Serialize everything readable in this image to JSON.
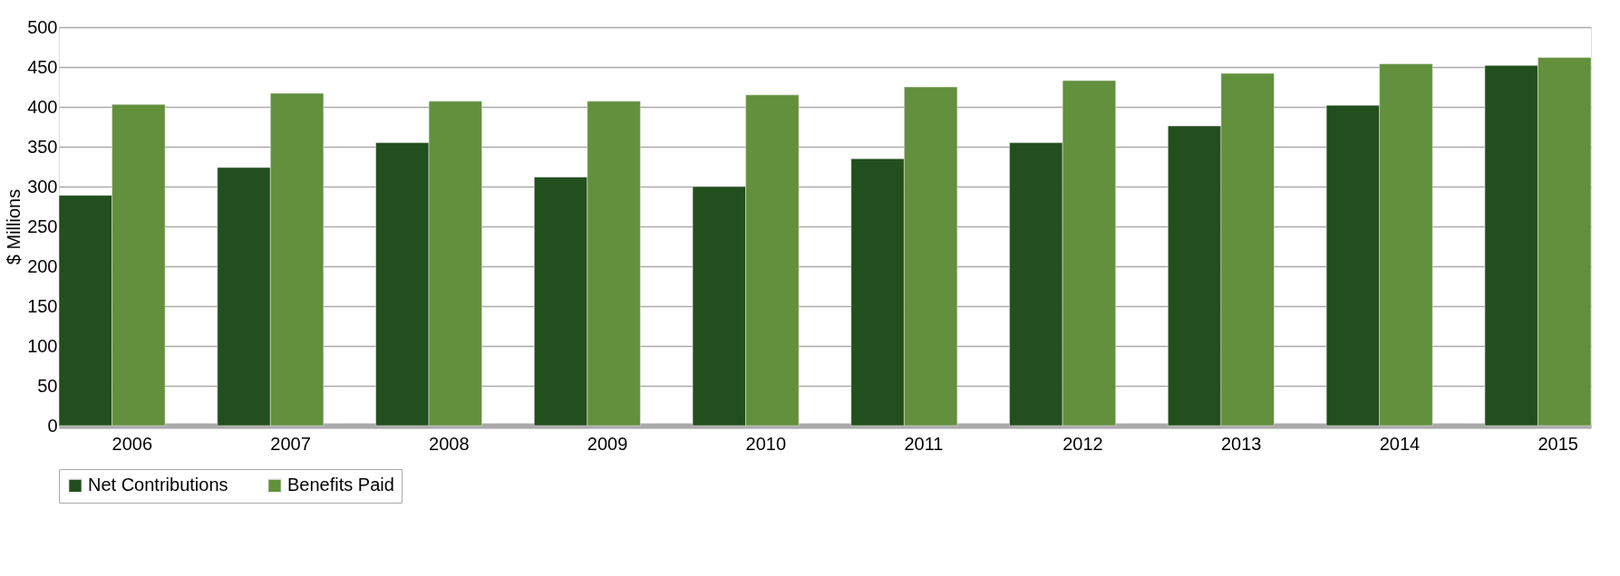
{
  "chart_data": {
    "type": "bar",
    "ylabel": "$ Millions",
    "categories": [
      "2006",
      "2007",
      "2008",
      "2009",
      "2010",
      "2011",
      "2012",
      "2013",
      "2014",
      "2015"
    ],
    "series": [
      {
        "name": "Net Contributions",
        "color": "#224f1d",
        "values": [
          289,
          324,
          355,
          312,
          300,
          335,
          355,
          376,
          402,
          452
        ]
      },
      {
        "name": "Benefits Paid",
        "color": "#62903c",
        "values": [
          403,
          417,
          407,
          407,
          415,
          425,
          433,
          442,
          454,
          462
        ]
      }
    ],
    "ylim": [
      0,
      500
    ],
    "yticks": [
      0,
      50,
      100,
      150,
      200,
      250,
      300,
      350,
      400,
      450,
      500
    ],
    "grid": "y",
    "legend": "bottom"
  }
}
